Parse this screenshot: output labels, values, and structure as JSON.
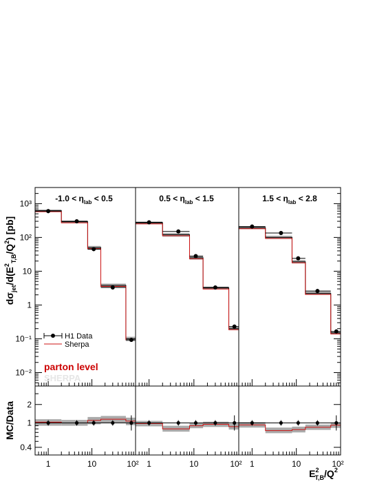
{
  "chart_data": {
    "type": "bar",
    "yunit": "[pb]",
    "ylabel_main": "dσjet/d(E²T,B/Q²) [pb]",
    "ylabel_ratio": "MC/Data",
    "xlabel": "E²T,B/Q²",
    "x_scale": "log",
    "y_scale_main": "log",
    "y_scale_ratio": "log",
    "xlim": [
      0.5,
      100
    ],
    "ylim_main": [
      0.004,
      3000
    ],
    "ylim_ratio": [
      0.3,
      4
    ],
    "x_ticks": [
      "1",
      "10",
      "10²"
    ],
    "y_ticks_main": [
      "10⁻²",
      "10⁻¹",
      "1",
      "10",
      "10²",
      "10³"
    ],
    "y_ticks_ratio": [
      "0.4",
      "1",
      "2"
    ],
    "bin_edges": [
      0.5,
      2,
      8,
      16,
      60,
      100
    ],
    "legend": {
      "data_label": "H1 Data",
      "mc_label": "Sherpa",
      "level_label": "parton level",
      "generator_label": "SHERPA"
    },
    "colors": {
      "data": "#000000",
      "mc": "#cc1111",
      "band": "#aaaaaa",
      "frame": "#000000",
      "level_text": "#cc0000",
      "generator_text": "#e6e6e6"
    },
    "panels": [
      {
        "title": "-1.0 < ηlab < 0.5",
        "data_points": [
          {
            "x": 1.0,
            "y": 600
          },
          {
            "x": 4.5,
            "y": 300
          },
          {
            "x": 11,
            "y": 45
          },
          {
            "x": 30,
            "y": 3.3
          },
          {
            "x": 80,
            "y": 0.093
          }
        ],
        "sherpa": [
          620,
          290,
          50,
          3.8,
          0.1
        ],
        "sherpa_band": [
          [
            570,
            670
          ],
          [
            270,
            315
          ],
          [
            43,
            56
          ],
          [
            3.3,
            4.3
          ],
          [
            0.085,
            0.115
          ]
        ],
        "ratio_points": [
          1.0,
          1.0,
          1.0,
          1.0,
          1.0
        ],
        "ratio_mc": [
          1.03,
          1.0,
          1.1,
          1.15,
          1.07
        ],
        "ratio_band": [
          [
            0.9,
            1.15
          ],
          [
            0.9,
            1.12
          ],
          [
            0.95,
            1.25
          ],
          [
            1.0,
            1.3
          ],
          [
            0.92,
            1.22
          ]
        ]
      },
      {
        "title": "0.5 < ηlab < 1.5",
        "data_points": [
          {
            "x": 1.0,
            "y": 280
          },
          {
            "x": 4.5,
            "y": 150
          },
          {
            "x": 11,
            "y": 28
          },
          {
            "x": 30,
            "y": 3.3
          },
          {
            "x": 80,
            "y": 0.23
          }
        ],
        "sherpa": [
          270,
          120,
          25,
          3.2,
          0.2
        ],
        "sherpa_band": [
          [
            245,
            295
          ],
          [
            105,
            135
          ],
          [
            22,
            28
          ],
          [
            2.9,
            3.5
          ],
          [
            0.18,
            0.23
          ]
        ],
        "ratio_points": [
          1.0,
          1.0,
          1.0,
          1.0,
          1.0
        ],
        "ratio_mc": [
          0.98,
          0.8,
          0.9,
          0.95,
          0.87
        ],
        "ratio_band": [
          [
            0.88,
            1.08
          ],
          [
            0.72,
            0.9
          ],
          [
            0.82,
            1.0
          ],
          [
            0.86,
            1.05
          ],
          [
            0.78,
            0.97
          ]
        ]
      },
      {
        "title": "1.5 < ηlab < 2.8",
        "data_points": [
          {
            "x": 1.0,
            "y": 210
          },
          {
            "x": 4.5,
            "y": 135
          },
          {
            "x": 11,
            "y": 24
          },
          {
            "x": 30,
            "y": 2.6
          },
          {
            "x": 80,
            "y": 0.165
          }
        ],
        "sherpa": [
          195,
          100,
          19,
          2.2,
          0.15
        ],
        "sherpa_band": [
          [
            175,
            215
          ],
          [
            90,
            112
          ],
          [
            17,
            21.5
          ],
          [
            2.0,
            2.5
          ],
          [
            0.135,
            0.165
          ]
        ],
        "ratio_points": [
          1.0,
          1.0,
          1.0,
          1.0,
          1.0
        ],
        "ratio_mc": [
          0.93,
          0.75,
          0.78,
          0.85,
          0.92
        ],
        "ratio_band": [
          [
            0.84,
            1.03
          ],
          [
            0.68,
            0.84
          ],
          [
            0.7,
            0.87
          ],
          [
            0.77,
            0.94
          ],
          [
            0.83,
            1.02
          ]
        ]
      }
    ]
  }
}
